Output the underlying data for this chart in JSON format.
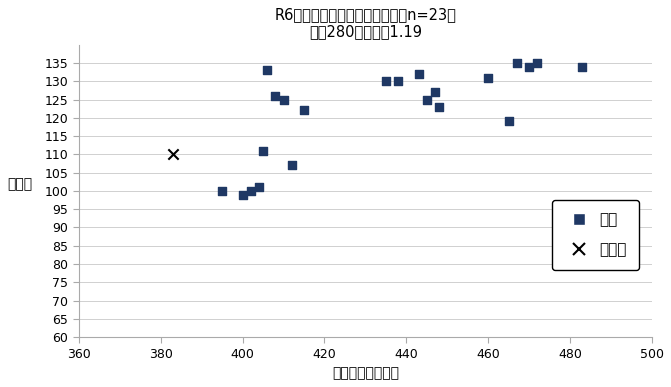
{
  "title_line1": "R6年度緑岡高校，点数マップ（n=23）",
  "title_line2": "定員280名，倍率1.19",
  "xlabel": "学力試験総合得点",
  "ylabel": "内申点",
  "xlim": [
    360,
    500
  ],
  "ylim": [
    60,
    140
  ],
  "xticks": [
    360,
    380,
    400,
    420,
    440,
    460,
    480,
    500
  ],
  "yticks": [
    60,
    65,
    70,
    75,
    80,
    85,
    90,
    95,
    100,
    105,
    110,
    115,
    120,
    125,
    130,
    135
  ],
  "pass_x": [
    395,
    400,
    402,
    404,
    405,
    406,
    408,
    410,
    412,
    415,
    435,
    438,
    443,
    445,
    447,
    448,
    460,
    465,
    467,
    470,
    472,
    483
  ],
  "pass_y": [
    100,
    99,
    100,
    101,
    111,
    133,
    126,
    125,
    107,
    122,
    130,
    130,
    132,
    125,
    127,
    123,
    131,
    119,
    135,
    134,
    135,
    134
  ],
  "fail_x": [
    383
  ],
  "fail_y": [
    110
  ],
  "dot_color": "#1F3864",
  "background_color": "#ffffff",
  "legend_pass": "合格",
  "legend_fail": "不合格",
  "title_fontsize": 10.5,
  "label_fontsize": 10,
  "tick_fontsize": 9,
  "legend_fontsize": 11
}
